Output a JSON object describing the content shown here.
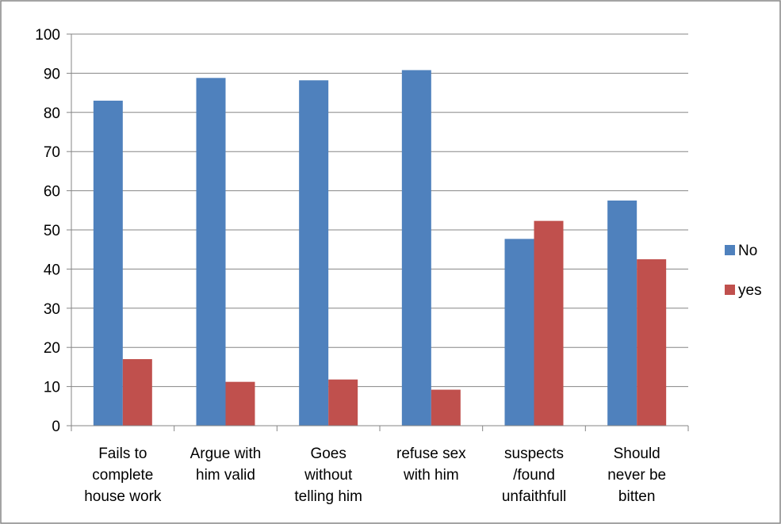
{
  "chart_data": {
    "type": "bar",
    "title": "",
    "xlabel": "",
    "ylabel": "",
    "ylim": [
      0,
      100
    ],
    "yticks": [
      0,
      10,
      20,
      30,
      40,
      50,
      60,
      70,
      80,
      90,
      100
    ],
    "grid": true,
    "legend_position": "right",
    "categories": [
      [
        "Fails to",
        "complete",
        "house work"
      ],
      [
        "Argue with",
        "him valid"
      ],
      [
        "Goes",
        "without",
        "telling him"
      ],
      [
        "refuse sex",
        "with him"
      ],
      [
        "suspects",
        "/found",
        "unfaithfull"
      ],
      [
        "Should",
        "never be",
        "bitten"
      ]
    ],
    "series": [
      {
        "name": "No",
        "color": "#4F81BD",
        "values": [
          83.0,
          88.8,
          88.2,
          90.8,
          47.7,
          57.5
        ]
      },
      {
        "name": "yes",
        "color": "#C0504D",
        "values": [
          17.0,
          11.2,
          11.8,
          9.2,
          52.3,
          42.5
        ]
      }
    ]
  }
}
